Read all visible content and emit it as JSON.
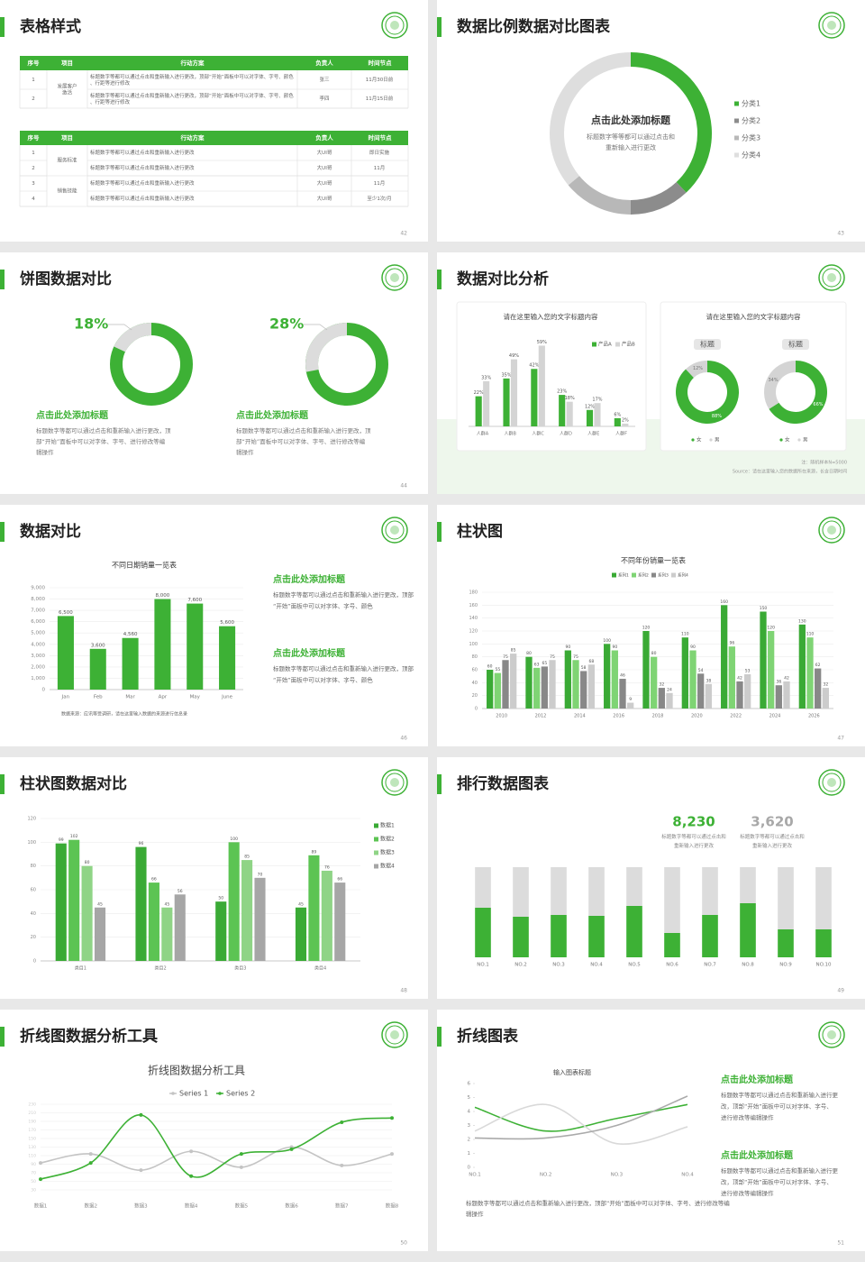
{
  "slides": [
    {
      "title": "表格样式",
      "page": "42",
      "tables": [
        {
          "header": [
            "序号",
            "项目",
            "行动方案",
            "负责人",
            "时间节点"
          ],
          "groups": [
            {
              "project": "发展客户激活",
              "rows": [
                {
                  "no": "1",
                  "plan": "标题数字等都可以通过点击和重新输入进行更改，顶部“开始”面板中可以对字体、字号、颜色、行距等进行修改",
                  "owner": "张三",
                  "time": "11月30日前"
                },
                {
                  "no": "2",
                  "plan": "标题数字等都可以通过点击和重新输入进行更改，顶部“开始”面板中可以对字体、字号、颜色、行距等进行修改",
                  "owner": "李四",
                  "time": "11月15日前"
                }
              ]
            }
          ]
        },
        {
          "header": [
            "序号",
            "项目",
            "行动方案",
            "负责人",
            "时间节点"
          ],
          "groups": [
            {
              "project": "服务标准",
              "rows": [
                {
                  "no": "1",
                  "plan": "标题数字等都可以通过点击和重新输入进行更改",
                  "owner": "大UI哥",
                  "time": "即日实施"
                },
                {
                  "no": "2",
                  "plan": "标题数字等都可以通过点击和重新输入进行更改",
                  "owner": "大UI哥",
                  "time": "11月"
                }
              ]
            },
            {
              "project": "销售技能",
              "rows": [
                {
                  "no": "3",
                  "plan": "标题数字等都可以通过点击和重新输入进行更改",
                  "owner": "大UI哥",
                  "time": "11月"
                },
                {
                  "no": "4",
                  "plan": "标题数字等都可以通过点击和重新输入进行更改",
                  "owner": "大UI哥",
                  "time": "至少1次/月"
                }
              ]
            }
          ]
        }
      ]
    },
    {
      "title": "数据比例数据对比图表",
      "page": "43",
      "center_title": "点击此处添加标题",
      "center_text": "标题数字等等都可以通过点击和重新输入进行更改",
      "chart": {
        "type": "donut",
        "categories": [
          "分类1",
          "分类2",
          "分类3",
          "分类4"
        ],
        "values": [
          38,
          12,
          14,
          36
        ],
        "colors": [
          "#3db135",
          "#8c8c8c",
          "#b8b8b8",
          "#dedede"
        ],
        "legend": "right"
      }
    },
    {
      "title": "饼图数据对比",
      "page": "44",
      "track_color": "#3db135",
      "segment_color": "#dcdcdc",
      "pies": [
        {
          "value": 18,
          "value_label": "18%",
          "heading": "点击此处添加标题",
          "text": "标题数字等都可以通过点击和重新输入进行更改，顶部“开始”面板中可以对字体、字号、进行修改等编辑操作"
        },
        {
          "value": 28,
          "value_label": "28%",
          "heading": "点击此处添加标题",
          "text": "标题数字等都可以通过点击和重新输入进行更改，顶部“开始”面板中可以对字体、字号、进行修改等编辑操作"
        }
      ]
    },
    {
      "title": "数据对比分析",
      "page": "45",
      "charts": [
        {
          "type": "bar",
          "title": "请在这里输入您的文字标题内容",
          "legend": "top",
          "data_labels": true,
          "categories": [
            "人群A",
            "人群B",
            "人群C",
            "人群D",
            "人群E",
            "人群F"
          ],
          "series": [
            {
              "name": "产品A",
              "color": "#3db135",
              "values": [
                22,
                35,
                42,
                23,
                12,
                6
              ],
              "value_labels": [
                "22%",
                "35%",
                "42%",
                "23%",
                "12%",
                "6%"
              ]
            },
            {
              "name": "产品B",
              "color": "#d4d4d4",
              "values": [
                33,
                49,
                59,
                18,
                17,
                2
              ],
              "value_labels": [
                "33%",
                "49%",
                "59%",
                "18%",
                "17%",
                "2%"
              ]
            }
          ]
        },
        {
          "type": "donut_group",
          "title": "请在这里输入您的文字标题内容",
          "legend": "bottom",
          "categories": [
            "女",
            "男"
          ],
          "colors": [
            "#3db135",
            "#d4d4d4"
          ],
          "items": [
            {
              "title": "标题",
              "values": [
                88,
                12
              ],
              "value_labels": [
                "88%",
                "12%"
              ]
            },
            {
              "title": "标题",
              "values": [
                66,
                34
              ],
              "value_labels": [
                "66%",
                "34%"
              ]
            }
          ]
        }
      ],
      "footnotes": [
        "注：随机样本N=5000",
        "Source：请在这里输入您的数据所在来源，长含日期时间"
      ]
    },
    {
      "title": "数据对比",
      "page": "46",
      "note": "数据来源：应讯等受调研，请在这里输入数据的来源进行信息录",
      "chart": {
        "type": "bar",
        "title": "不同日期销量一览表",
        "data_labels": true,
        "grid": true,
        "categories": [
          "Jan",
          "Feb",
          "Mar",
          "Apr",
          "May",
          "June"
        ],
        "series": [
          {
            "color": "#3db135",
            "values": [
              6500,
              3600,
              4560,
              8000,
              7600,
              5600
            ],
            "value_labels": [
              "6,500",
              "3,600",
              "4,560",
              "8,000",
              "7,600",
              "5,600"
            ]
          }
        ],
        "ylim": [
          0,
          9000
        ],
        "yticks": [
          0,
          {
            "value": 1000,
            "label": "1,000"
          },
          {
            "value": 2000,
            "label": "2,000"
          },
          {
            "value": 3000,
            "label": "3,000"
          },
          {
            "value": 4000,
            "label": "4,000"
          },
          {
            "value": 5000,
            "label": "5,000"
          },
          {
            "value": 6000,
            "label": "6,000"
          },
          {
            "value": 7000,
            "label": "7,000"
          },
          {
            "value": 8000,
            "label": "8,000"
          },
          {
            "value": 9000,
            "label": "9,000"
          }
        ]
      },
      "blocks": [
        {
          "heading": "点击此处添加标题",
          "text": "标题数字等都可以通过点击和重新输入进行更改，顶部“开始”面板中可以对字体、字号、颜色"
        },
        {
          "heading": "点击此处添加标题",
          "text": "标题数字等都可以通过点击和重新输入进行更改，顶部“开始”面板中可以对字体、字号、颜色"
        }
      ]
    },
    {
      "title": "柱状图",
      "page": "47",
      "chart": {
        "type": "bar",
        "title": "不同年份销量一览表",
        "legend": "top",
        "data_labels": true,
        "grid": true,
        "categories": [
          "2010",
          "2012",
          "2014",
          "2016",
          "2018",
          "2020",
          "2022",
          "2024",
          "2026"
        ],
        "series": [
          {
            "name": "系列1",
            "color": "#3aaa35",
            "values": [
              60,
              80,
              90,
              100,
              120,
              110,
              160,
              150,
              130
            ]
          },
          {
            "name": "系列2",
            "color": "#7fd474",
            "values": [
              55,
              63,
              75,
              90,
              80,
              90,
              96,
              120,
              110
            ]
          },
          {
            "name": "系列3",
            "color": "#888888",
            "values": [
              75,
              65,
              58,
              46,
              32,
              54,
              42,
              36,
              62
            ]
          },
          {
            "name": "系列4",
            "color": "#cccccc",
            "values": [
              85,
              75,
              68,
              9,
              24,
              38,
              53,
              42,
              32
            ]
          }
        ],
        "ylim": [
          0,
          180
        ],
        "yticks": [
          0,
          20,
          40,
          60,
          80,
          100,
          120,
          140,
          160,
          180
        ]
      }
    },
    {
      "title": "柱状图数据对比",
      "page": "48",
      "chart": {
        "type": "bar",
        "legend": "right",
        "data_labels": true,
        "grid": true,
        "categories": [
          "类目1",
          "类目2",
          "类目3",
          "类目4"
        ],
        "series": [
          {
            "name": "数据1",
            "color": "#3aaa35",
            "values": [
              99,
              96,
              50,
              45
            ]
          },
          {
            "name": "数据2",
            "color": "#5cc453",
            "values": [
              102,
              66,
              100,
              89
            ]
          },
          {
            "name": "数据3",
            "color": "#8fd486",
            "values": [
              80,
              45,
              85,
              76
            ]
          },
          {
            "name": "数据4",
            "color": "#a6a6a6",
            "values": [
              45,
              56,
              70,
              66
            ]
          }
        ],
        "ylim": [
          0,
          120
        ],
        "yticks": [
          0,
          20,
          40,
          60,
          80,
          100,
          120
        ]
      }
    },
    {
      "title": "排行数据图表",
      "page": "49",
      "stats": [
        {
          "value": "8,230",
          "text": "标题数字等都可以通过点击和重新输入进行更改",
          "color": "#3db135"
        },
        {
          "value": "3,620",
          "text": "标题数字等都可以通过点击和重新输入进行更改",
          "color": "#a8a8a8"
        }
      ],
      "chart": {
        "type": "stacked_bar",
        "categories": [
          "NO.1",
          "NO.2",
          "NO.3",
          "NO.4",
          "NO.5",
          "NO.6",
          "NO.7",
          "NO.8",
          "NO.9",
          "NO.10"
        ],
        "series": [
          {
            "color": "#3db135",
            "values": [
              55,
              45,
              47,
              46,
              57,
              27,
              47,
              60,
              31,
              31
            ]
          },
          {
            "color": "#dcdcdc",
            "values": [
              45,
              55,
              53,
              54,
              43,
              73,
              53,
              40,
              69,
              69
            ]
          }
        ]
      }
    },
    {
      "title": "折线图数据分析工具",
      "page": "50",
      "chart": {
        "type": "line",
        "title": "折线图数据分析工具",
        "legend": "top",
        "smooth": true,
        "markers": true,
        "grid": true,
        "categories": [
          "数据1",
          "数据2",
          "数据3",
          "数据4",
          "数据5",
          "数据6",
          "数据7",
          "数据8"
        ],
        "series": [
          {
            "name": "Series 1",
            "color": "#c4c4c4",
            "values": [
              93,
              114,
              76,
              120,
              83,
              130,
              87,
              114
            ]
          },
          {
            "name": "Series 2",
            "color": "#3db135",
            "values": [
              55,
              93,
              205,
              62,
              114,
              125,
              188,
              198
            ]
          }
        ],
        "ylim": [
          30,
          230
        ],
        "yticks": [
          30,
          50,
          70,
          90,
          110,
          130,
          150,
          170,
          190,
          210,
          230
        ]
      }
    },
    {
      "title": "折线图表",
      "page": "51",
      "chart": {
        "type": "line",
        "title": "输入图表标题",
        "smooth": true,
        "categories": [
          "NO.1",
          "NO.2",
          "NO.3",
          "NO.4"
        ],
        "series": [
          {
            "color": "#3db135",
            "values": [
              4.3,
              2.6,
              3.5,
              4.5
            ]
          },
          {
            "color": "#d9d9d9",
            "values": [
              2.6,
              4.5,
              1.7,
              2.9
            ]
          },
          {
            "color": "#aaaaaa",
            "values": [
              2.1,
              2.1,
              3.0,
              5.1
            ]
          }
        ],
        "ylim": [
          0,
          6
        ],
        "yticks": [
          0,
          1,
          2,
          3,
          4,
          5,
          6
        ]
      },
      "blocks": [
        {
          "heading": "点击此处添加标题",
          "text": "标题数字等都可以通过点击和重新输入进行更改，顶部“开始”面板中可以对字体、字号、进行修改等编辑操作"
        },
        {
          "heading": "点击此处添加标题",
          "text": "标题数字等都可以通过点击和重新输入进行更改，顶部“开始”面板中可以对字体、字号、进行修改等编辑操作"
        }
      ],
      "bottom_text": "标题数字等都可以通过点击和重新输入进行更改，顶部“开始”面板中可以对字体、字号、进行修改等编辑操作"
    }
  ]
}
